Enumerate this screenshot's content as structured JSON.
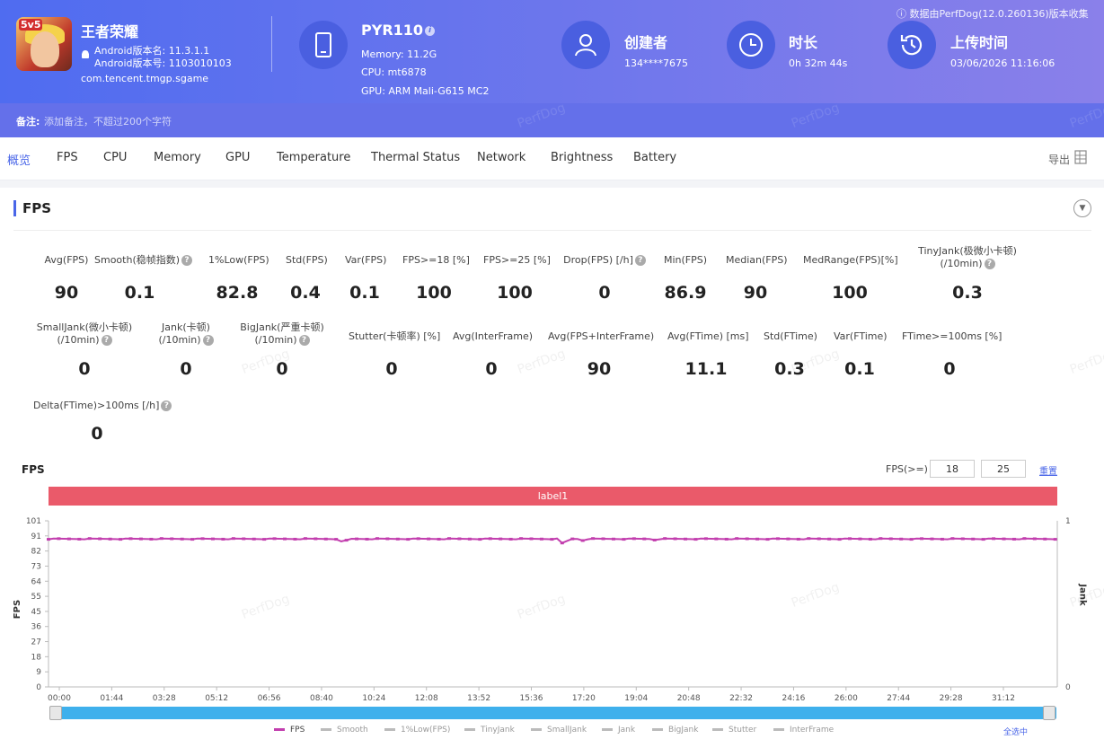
{
  "app": {
    "name": "王者荣耀",
    "version_name": "Android版本名: 11.3.1.1",
    "version_code": "Android版本号: 1103010103",
    "package": "com.tencent.tmgp.sgame"
  },
  "device": {
    "name": "PYR110",
    "memory": "Memory: 11.2G",
    "cpu": "CPU: mt6878",
    "gpu": "GPU: ARM Mali-G615 MC2"
  },
  "creator": {
    "label": "创建者",
    "value": "134****7675"
  },
  "duration": {
    "label": "时长",
    "value": "0h 32m 44s"
  },
  "upload": {
    "label": "上传时间",
    "value": "03/06/2026 11:16:06"
  },
  "collect_note": "ⓘ 数据由PerfDog(12.0.260136)版本收集",
  "note": {
    "label": "备注:",
    "placeholder": "添加备注，不超过200个字符"
  },
  "watermark": "PerfDog",
  "tabs": [
    "概览",
    "FPS",
    "CPU",
    "Memory",
    "GPU",
    "Temperature",
    "Thermal Status",
    "Network",
    "Brightness",
    "Battery"
  ],
  "export_label": "导出",
  "section_title": "FPS",
  "metrics": [
    {
      "label": "Avg(FPS)",
      "value": "90"
    },
    {
      "label": "Smooth(稳帧指数)",
      "value": "0.1"
    },
    {
      "label": "1%Low(FPS)",
      "value": "82.8"
    },
    {
      "label": "Std(FPS)",
      "value": "0.4"
    },
    {
      "label": "Var(FPS)",
      "value": "0.1"
    },
    {
      "label": "FPS>=18 [%]",
      "value": "100"
    },
    {
      "label": "FPS>=25 [%]",
      "value": "100"
    },
    {
      "label": "Drop(FPS) [/h]",
      "value": "0"
    },
    {
      "label": "Min(FPS)",
      "value": "86.9"
    },
    {
      "label": "Median(FPS)",
      "value": "90"
    },
    {
      "label": "MedRange(FPS)[%]",
      "value": "100"
    },
    {
      "label": "TinyJank(极微小卡顿)",
      "label2": "(/10min)",
      "value": "0.3"
    },
    {
      "label": "SmallJank(微小卡顿)",
      "label2": "(/10min)",
      "value": "0"
    },
    {
      "label": "Jank(卡顿)",
      "label2": "(/10min)",
      "value": "0"
    },
    {
      "label": "BigJank(严重卡顿)",
      "label2": "(/10min)",
      "value": "0"
    },
    {
      "label": "Stutter(卡顿率) [%]",
      "value": "0"
    },
    {
      "label": "Avg(InterFrame)",
      "value": "0"
    },
    {
      "label": "Avg(FPS+InterFrame)",
      "value": "90"
    },
    {
      "label": "Avg(FTime) [ms]",
      "value": "11.1"
    },
    {
      "label": "Std(FTime)",
      "value": "0.3"
    },
    {
      "label": "Var(FTime)",
      "value": "0.1"
    },
    {
      "label": "FTime>=100ms [%]",
      "value": "0"
    },
    {
      "label": "Delta(FTime)>100ms [/h]",
      "value": "0"
    }
  ],
  "chart_panel": {
    "title": "FPS",
    "threshold_label": "FPS(>=)",
    "threshold1": "18",
    "threshold2": "25",
    "reset_label": "重置",
    "label_bar": "label1",
    "select_all": "全选中",
    "legend": [
      "FPS",
      "Smooth",
      "1%Low(FPS)",
      "TinyJank",
      "SmallJank",
      "Jank",
      "BigJank",
      "Stutter",
      "InterFrame"
    ]
  },
  "chart_data": {
    "type": "line",
    "title": "",
    "ylabel": "FPS",
    "y2label": "Jank",
    "ylim": [
      0,
      101
    ],
    "y_ticks": [
      "101",
      "91",
      "82",
      "73",
      "64",
      "55",
      "45",
      "36",
      "27",
      "18",
      "9",
      "0"
    ],
    "y2_ticks": [
      "1",
      "0"
    ],
    "x_ticks": [
      "00:00",
      "01:44",
      "03:28",
      "05:12",
      "06:56",
      "08:40",
      "10:24",
      "12:08",
      "13:52",
      "15:36",
      "17:20",
      "19:04",
      "20:48",
      "22:32",
      "24:16",
      "26:00",
      "27:44",
      "29:28",
      "31:12"
    ],
    "xlim_seconds": [
      0,
      1964
    ],
    "series": [
      {
        "name": "FPS",
        "color": "#c23eae",
        "baseline": 90,
        "dips": [
          [
            570,
            88.5
          ],
          [
            580,
            89.2
          ],
          [
            1000,
            87.5
          ],
          [
            1010,
            88.8
          ],
          [
            1040,
            89.0
          ],
          [
            1180,
            89.3
          ]
        ]
      }
    ]
  }
}
